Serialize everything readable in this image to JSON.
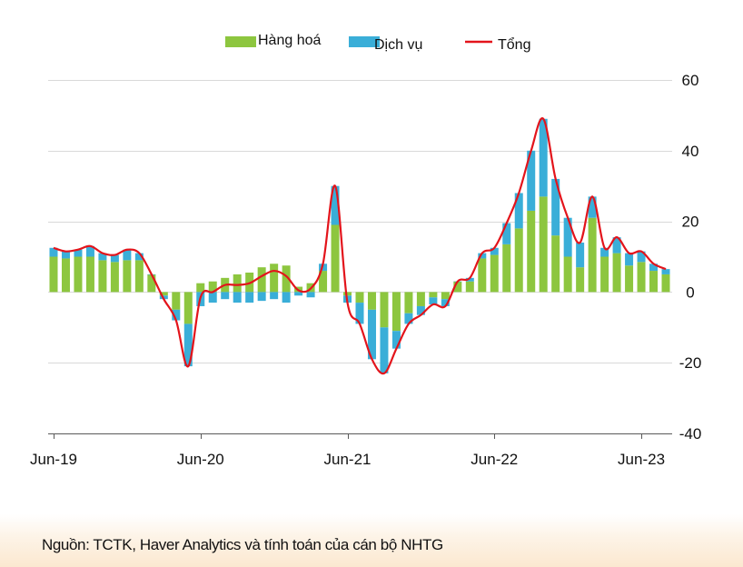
{
  "chart_data": {
    "type": "bar",
    "stacked": true,
    "title": "",
    "xlabel": "",
    "ylabel": "",
    "ylim": [
      -40,
      60
    ],
    "yticks": [
      60,
      40,
      20,
      0,
      -20,
      -40
    ],
    "x_tick_labels": [
      {
        "label": "Jun-19",
        "index": 0
      },
      {
        "label": "Jun-20",
        "index": 12
      },
      {
        "label": "Jun-21",
        "index": 24
      },
      {
        "label": "Jun-22",
        "index": 36
      },
      {
        "label": "Jun-23",
        "index": 48
      }
    ],
    "gridlines": true,
    "legend_position": "top-center",
    "series": [
      {
        "name": "Hàng hoá",
        "kind": "bar",
        "color": "#8dc63f",
        "values": [
          10,
          9.5,
          10,
          10,
          9,
          8.5,
          9,
          9,
          5,
          -1,
          -5,
          -9,
          2.5,
          3,
          4,
          5,
          5.5,
          7,
          8,
          7.5,
          1.5,
          2.5,
          6,
          19,
          -1,
          -3,
          -5,
          -10,
          -11,
          -6,
          -4,
          -1.5,
          -2,
          3,
          3,
          9.5,
          10.5,
          13.5,
          18,
          23,
          27,
          16,
          10,
          7,
          21,
          10,
          11,
          7.5,
          8.5,
          6,
          5
        ]
      },
      {
        "name": "Dịch vụ",
        "kind": "bar",
        "color": "#3aaed8",
        "values": [
          2.5,
          2,
          2,
          3,
          2,
          2,
          3,
          2,
          0,
          -1,
          -3,
          -12,
          -4,
          -3,
          -2,
          -3,
          -3,
          -2.5,
          -2,
          -3,
          -1,
          -1.5,
          2,
          11,
          -2,
          -6,
          -14,
          -13,
          -5,
          -3,
          -2.5,
          -2,
          -2,
          0,
          1,
          1.5,
          2,
          6,
          10,
          17,
          22,
          16,
          11,
          7,
          6,
          2.5,
          4.5,
          3.5,
          3,
          2,
          1.5
        ]
      },
      {
        "name": "Tổng",
        "kind": "line",
        "color": "#e3141b",
        "values": [
          12.5,
          11.5,
          12,
          13,
          11,
          10.5,
          12,
          11,
          5,
          -2,
          -8,
          -21,
          -1.5,
          0,
          2,
          2,
          2.5,
          4.5,
          6,
          4.5,
          0.5,
          1,
          8,
          30,
          -3,
          -9,
          -19,
          -23,
          -16,
          -9,
          -6.5,
          -3.5,
          -4,
          3,
          4,
          11,
          12.5,
          19.5,
          28,
          40,
          49,
          32,
          21,
          14,
          27,
          12.5,
          15.5,
          11,
          11.5,
          8,
          6.5
        ]
      }
    ]
  },
  "footer": {
    "source": "Nguồn: TCTK, Haver Analytics và tính toán của cán bộ NHTG"
  }
}
